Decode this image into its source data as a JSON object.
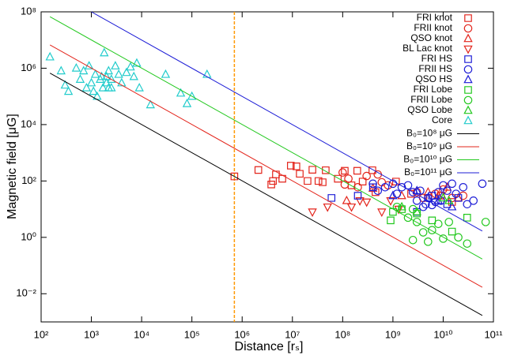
{
  "chart_data": {
    "type": "scatter",
    "xlabel": "Distance [rₛ]",
    "ylabel": "Magnetic field [μG]",
    "log_x": true,
    "log_y": true,
    "xlim": [
      100,
      100000000000
    ],
    "ylim": [
      0.001,
      100000000
    ],
    "xticks": [
      {
        "value": 100,
        "label": "10²"
      },
      {
        "value": 1000,
        "label": "10³"
      },
      {
        "value": 10000,
        "label": "10⁴"
      },
      {
        "value": 100000,
        "label": "10⁵"
      },
      {
        "value": 1000000,
        "label": "10⁶"
      },
      {
        "value": 10000000,
        "label": "10⁷"
      },
      {
        "value": 100000000,
        "label": "10⁸"
      },
      {
        "value": 1000000000,
        "label": "10⁹"
      },
      {
        "value": 10000000000,
        "label": "10¹⁰"
      },
      {
        "value": 100000000000,
        "label": "10¹¹"
      }
    ],
    "yticks": [
      {
        "value": 0.01,
        "label": "10⁻²"
      },
      {
        "value": 1,
        "label": "10⁰"
      },
      {
        "value": 100,
        "label": "10²"
      },
      {
        "value": 10000,
        "label": "10⁴"
      },
      {
        "value": 1000000,
        "label": "10⁶"
      },
      {
        "value": 100000000,
        "label": "10⁸"
      }
    ],
    "vline": {
      "x": 700000,
      "color": "#ff9900"
    },
    "series": [
      {
        "name": "FRI knot",
        "color": "#e3241b",
        "marker": "square",
        "x": [
          700000,
          2100000,
          4100000,
          4700000,
          3800000,
          6300000,
          9300000,
          12000000,
          14000000,
          20000000,
          25000000,
          33000000,
          40000000,
          46000000,
          80000000,
          110000000,
          150000000,
          195000000,
          250000000,
          390000000,
          450000000,
          1150000000,
          2300000000,
          5000000000,
          9000000000,
          15000000000
        ],
        "values": [
          145,
          245,
          100,
          170,
          75,
          120,
          350,
          330,
          180,
          100,
          250,
          100,
          90,
          240,
          120,
          230,
          70,
          230,
          95,
          240,
          40,
          95,
          35,
          25,
          30,
          18
        ]
      },
      {
        "name": "FRII knot",
        "color": "#e3241b",
        "marker": "circle",
        "x": [
          100000000,
          110000000,
          130000000,
          200000000,
          300000000,
          500000000,
          600000000,
          800000000,
          3000000000,
          4000000000,
          7000000000,
          10000000000,
          15000000000,
          25000000000
        ],
        "values": [
          200,
          75,
          120,
          60,
          150,
          170,
          90,
          70,
          40,
          25,
          35,
          50,
          25,
          30
        ]
      },
      {
        "name": "QSO knot",
        "color": "#e3241b",
        "marker": "triangle",
        "x": [
          120000000,
          400000000,
          1500000000,
          5000000000,
          8000000000,
          12000000000,
          20000000000
        ],
        "values": [
          20,
          55,
          30,
          40,
          30,
          60,
          25
        ]
      },
      {
        "name": "BL Lac knot",
        "color": "#e3241b",
        "marker": "triangle-down",
        "x": [
          25000000,
          50000000,
          150000000,
          220000000,
          300000000,
          600000000,
          900000000,
          1300000000
        ],
        "values": [
          8,
          12,
          12,
          20,
          18,
          8,
          20,
          10
        ]
      },
      {
        "name": "FRI HS",
        "color": "#1c1cd6",
        "marker": "square",
        "x": [
          60000000,
          200000000,
          400000000,
          3000000000,
          6000000000,
          12000000000,
          20000000000
        ],
        "values": [
          25,
          30,
          60,
          8,
          30,
          15,
          25
        ]
      },
      {
        "name": "FRII HS",
        "color": "#1c1cd6",
        "marker": "circle",
        "x": [
          400000000,
          500000000,
          700000000,
          1000000000,
          1200000000,
          1500000000,
          2000000000,
          2500000000,
          3000000000,
          3500000000,
          4000000000,
          4500000000,
          5000000000,
          6000000000,
          7000000000,
          8000000000,
          9000000000,
          10000000000,
          12000000000,
          15000000000,
          18000000000,
          25000000000,
          40000000000,
          60000000000,
          30000000000
        ],
        "values": [
          80,
          45,
          60,
          80,
          35,
          60,
          70,
          40,
          20,
          45,
          12,
          15,
          25,
          14,
          18,
          40,
          20,
          70,
          45,
          80,
          35,
          60,
          20,
          80,
          15
        ]
      },
      {
        "name": "QSO HS",
        "color": "#1c1cd6",
        "marker": "triangle",
        "x": [
          1000000000,
          3000000000,
          5000000000,
          8000000000,
          15000000000
        ],
        "values": [
          30,
          45,
          25,
          20,
          12
        ]
      },
      {
        "name": "FRI Lobe",
        "color": "#22c81e",
        "marker": "square",
        "x": [
          900000000,
          1000000000,
          1500000000,
          3000000000,
          6000000000,
          15000000000,
          30000000000
        ],
        "values": [
          4,
          8,
          10,
          7,
          4,
          1.6,
          5
        ]
      },
      {
        "name": "FRII Lobe",
        "color": "#22c81e",
        "marker": "circle",
        "x": [
          1200000000,
          2000000000,
          2500000000,
          3000000000,
          4000000000,
          5000000000,
          6000000000,
          8000000000,
          10000000000,
          13000000000,
          20000000000,
          30000000000,
          70000000000,
          2500000000
        ],
        "values": [
          12,
          5,
          10,
          3.5,
          1.5,
          0.7,
          1.8,
          3,
          0.9,
          3.5,
          1,
          0.6,
          3.5,
          0.8
        ]
      },
      {
        "name": "QSO Lobe",
        "color": "#22c81e",
        "marker": "triangle",
        "x": [
          1500000000,
          3000000000,
          10000000000,
          13000000000
        ],
        "values": [
          12,
          8,
          25,
          20
        ]
      },
      {
        "name": "Core",
        "color": "#22cccc",
        "marker": "triangle",
        "x": [
          150,
          250,
          300,
          350,
          500,
          600,
          700,
          800,
          900,
          1000,
          1100,
          1200,
          1300,
          1500,
          1700,
          1800,
          2000,
          2000,
          2200,
          2500,
          2500,
          3000,
          3500,
          4000,
          5000,
          6000,
          7000,
          8000,
          9000,
          15000,
          30000,
          60000,
          80000,
          100000,
          200000,
          2200,
          1600
        ],
        "values": [
          2500000,
          800000,
          250000,
          150000,
          1000000,
          400000,
          800000,
          200000,
          1200000,
          300000,
          150000,
          600000,
          100000,
          400000,
          200000,
          3500000,
          500000,
          300000,
          800000,
          400000,
          200000,
          1200000,
          600000,
          300000,
          700000,
          1100000,
          500000,
          1500000,
          200000,
          50000,
          600000,
          130000,
          55000,
          100000,
          600000,
          200000,
          500000
        ]
      },
      {
        "name": "B₀=10⁸ μG",
        "color": "#000000",
        "marker": "line",
        "x": [
          150,
          60000000000
        ],
        "values": [
          670000,
          0.0017
        ]
      },
      {
        "name": "B₀=10⁹ μG",
        "color": "#e3241b",
        "marker": "line",
        "x": [
          150,
          60000000000
        ],
        "values": [
          6700000,
          0.017
        ]
      },
      {
        "name": "B₀=10¹⁰ μG",
        "color": "#22c81e",
        "marker": "line",
        "x": [
          150,
          60000000000
        ],
        "values": [
          67000000,
          0.17
        ]
      },
      {
        "name": "B₀=10¹¹ μG",
        "color": "#1c1cd6",
        "marker": "line",
        "x": [
          1000,
          60000000000
        ],
        "values": [
          100000000,
          1.67
        ]
      }
    ]
  }
}
